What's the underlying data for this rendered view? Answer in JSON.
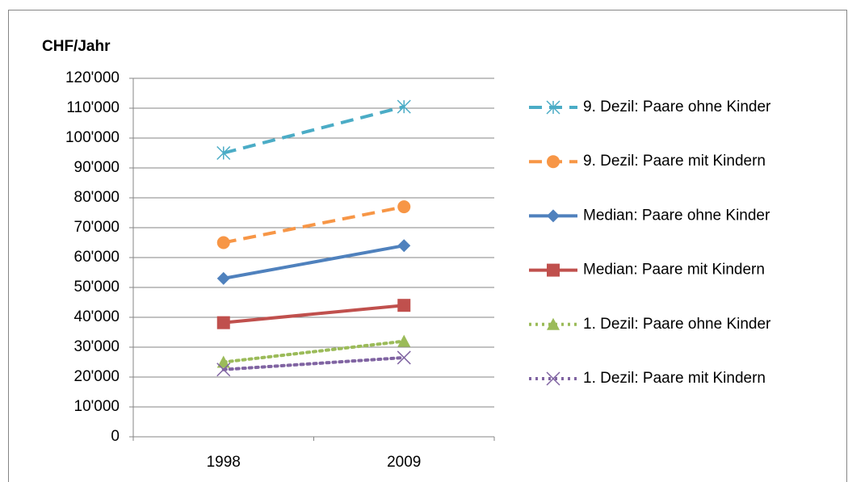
{
  "chart_data": {
    "type": "line",
    "y_axis_title": "CHF/Jahr",
    "categories": [
      "1998",
      "2009"
    ],
    "ylim": [
      0,
      120000
    ],
    "yticks": [
      0,
      {
        "value": 10000,
        "label": "10'000"
      },
      {
        "value": 20000,
        "label": "20'000"
      },
      {
        "value": 30000,
        "label": "30'000"
      },
      {
        "value": 40000,
        "label": "40'000"
      },
      {
        "value": 50000,
        "label": "50'000"
      },
      {
        "value": 60000,
        "label": "60'000"
      },
      {
        "value": 70000,
        "label": "70'000"
      },
      {
        "value": 80000,
        "label": "80'000"
      },
      {
        "value": 90000,
        "label": "90'000"
      },
      {
        "value": 100000,
        "label": "100'000"
      },
      {
        "value": 110000,
        "label": "110'000"
      },
      {
        "value": 120000,
        "label": "120'000"
      }
    ],
    "grid": true,
    "legend": "right",
    "series": [
      {
        "name": "9. Dezil: Paare ohne Kinder",
        "color": "#4bacc6",
        "dash": "dashed",
        "marker": "asterisk",
        "values": [
          95000,
          110500
        ]
      },
      {
        "name": "9. Dezil: Paare mit Kindern",
        "color": "#f79646",
        "dash": "dashed",
        "marker": "circle",
        "values": [
          65000,
          77000
        ]
      },
      {
        "name": "Median: Paare ohne Kinder",
        "color": "#4f81bd",
        "dash": "solid",
        "marker": "diamond",
        "values": [
          53000,
          64000
        ]
      },
      {
        "name": "Median: Paare mit Kindern",
        "color": "#c0504d",
        "dash": "solid",
        "marker": "square",
        "values": [
          38200,
          44000
        ]
      },
      {
        "name": "1. Dezil: Paare ohne Kinder",
        "color": "#9bbb59",
        "dash": "dotted",
        "marker": "triangle",
        "values": [
          25000,
          32000
        ]
      },
      {
        "name": "1. Dezil: Paare mit Kindern",
        "color": "#8064a2",
        "dash": "dotted",
        "marker": "x",
        "values": [
          22500,
          26500
        ]
      }
    ]
  }
}
